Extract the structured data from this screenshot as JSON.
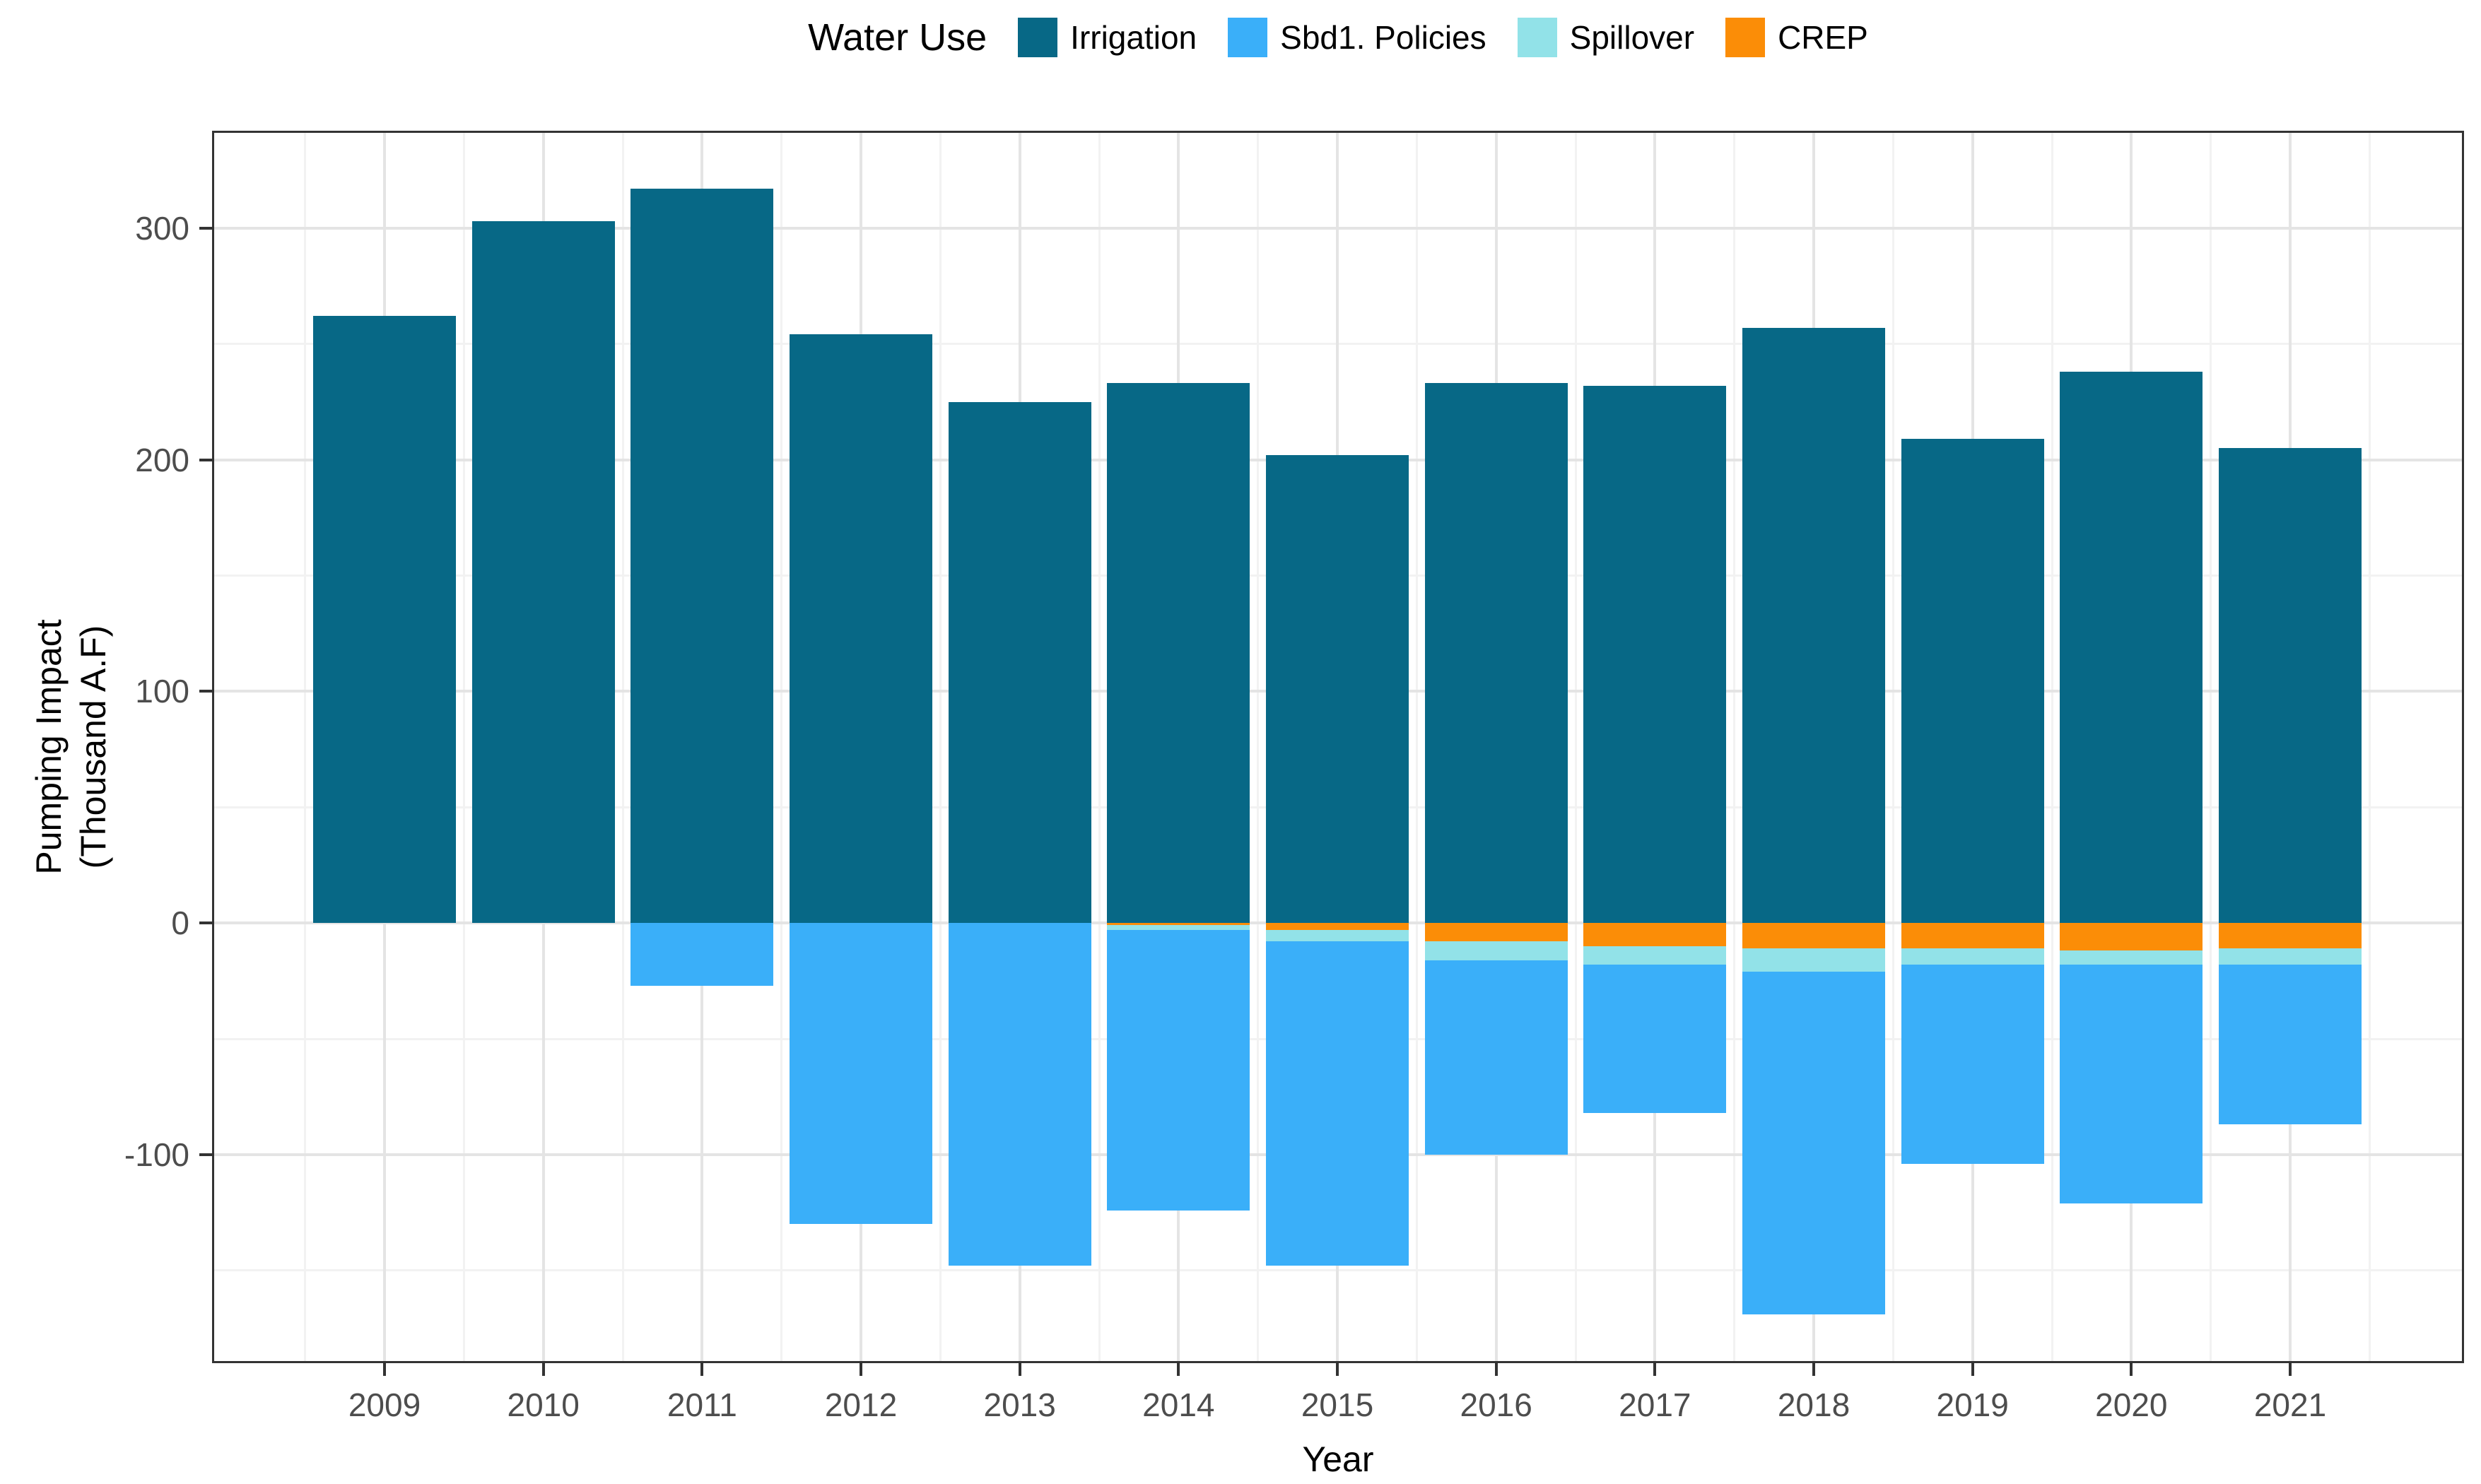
{
  "chart_data": {
    "type": "bar",
    "variant": "stacked-diverging",
    "legend_title": "Water Use",
    "xlabel": "Year",
    "ylabel_line1": "Pumping Impact",
    "ylabel_line2": "(Thousand A.F)",
    "categories": [
      "2009",
      "2010",
      "2011",
      "2012",
      "2013",
      "2014",
      "2015",
      "2016",
      "2017",
      "2018",
      "2019",
      "2020",
      "2021"
    ],
    "series": [
      {
        "name": "Irrigation",
        "color": "#076886",
        "values": [
          262,
          303,
          317,
          254,
          225,
          233,
          202,
          233,
          232,
          257,
          209,
          238,
          205
        ]
      },
      {
        "name": "Sbd1. Policies",
        "color": "#3AAFF9",
        "values": [
          0,
          0,
          -27,
          -130,
          -148,
          -121,
          -140,
          -84,
          -64,
          -148,
          -86,
          -103,
          -69
        ]
      },
      {
        "name": "Spillover",
        "color": "#92E2E8",
        "values": [
          0,
          0,
          0,
          0,
          0,
          -2,
          -5,
          -8,
          -8,
          -10,
          -7,
          -6,
          -7
        ]
      },
      {
        "name": "CREP",
        "color": "#FB8D07",
        "values": [
          0,
          0,
          0,
          0,
          0,
          -1,
          -3,
          -8,
          -10,
          -11,
          -11,
          -12,
          -11
        ]
      }
    ],
    "yticks": [
      -100,
      0,
      100,
      200,
      300
    ],
    "ylim": [
      -190,
      342
    ],
    "minor_step": 50,
    "grid": true,
    "legend_position": "top",
    "colors": {
      "panel_border": "#333333",
      "grid_major": "#e4e4e4",
      "grid_minor": "#f2f2f2",
      "tick_label": "#4d4d4d",
      "background": "#ffffff"
    }
  }
}
